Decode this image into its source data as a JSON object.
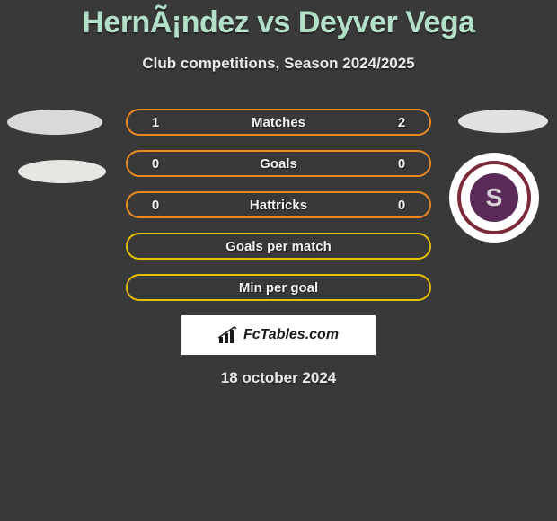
{
  "title": "HernÃ¡ndez vs Deyver Vega",
  "subtitle": "Club competitions, Season 2024/2025",
  "date": "18 october 2024",
  "brand": "FcTables.com",
  "club_badge": {
    "letter": "S",
    "ring_color": "#7c2a3a",
    "inner_color": "#5a2a58"
  },
  "row_style": {
    "height": 30,
    "border_radius": 15,
    "font_size": 15
  },
  "rows": [
    {
      "label": "Matches",
      "left": "1",
      "right": "2",
      "border_color": "#ea8a1f"
    },
    {
      "label": "Goals",
      "left": "0",
      "right": "0",
      "border_color": "#ea8a1f"
    },
    {
      "label": "Hattricks",
      "left": "0",
      "right": "0",
      "border_color": "#ea8a1f"
    },
    {
      "label": "Goals per match",
      "left": "",
      "right": "",
      "border_color": "#e5c100"
    },
    {
      "label": "Min per goal",
      "left": "",
      "right": "",
      "border_color": "#e5c100"
    }
  ],
  "colors": {
    "background": "#393939",
    "title_color": "#b3e0c9",
    "text_color": "#e8e8e8"
  }
}
